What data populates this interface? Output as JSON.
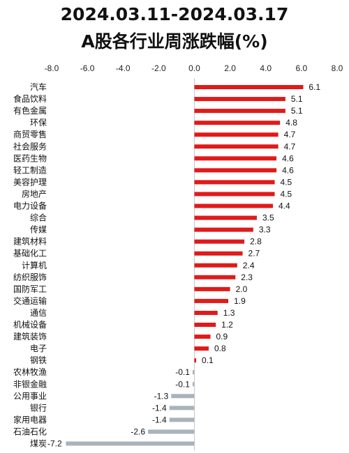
{
  "chart_data": {
    "type": "bar",
    "orientation": "horizontal",
    "title_line1": "2024.03.11-2024.03.17",
    "title_line2": "A股各行业周涨跌幅(%)",
    "xlim": [
      -8,
      8
    ],
    "x_ticks": [
      "-8.0",
      "-6.0",
      "-4.0",
      "-2.0",
      "0.0",
      "2.0",
      "4.0",
      "6.0",
      "8.0"
    ],
    "x_tick_values": [
      -8,
      -6,
      -4,
      -2,
      0,
      2,
      4,
      6,
      8
    ],
    "tick_position": "top",
    "grid": false,
    "positive_color": "#e01a1a",
    "negative_color": "#aab3bb",
    "categories": [
      "汽车",
      "食品饮料",
      "有色金属",
      "环保",
      "商贸零售",
      "社会服务",
      "医药生物",
      "轻工制造",
      "美容护理",
      "房地产",
      "电力设备",
      "综合",
      "传媒",
      "建筑材料",
      "基础化工",
      "计算机",
      "纺织服饰",
      "国防军工",
      "交通运输",
      "通信",
      "机械设备",
      "建筑装饰",
      "电子",
      "钢铁",
      "农林牧渔",
      "非银金融",
      "公用事业",
      "银行",
      "家用电器",
      "石油石化",
      "煤炭"
    ],
    "values": [
      6.1,
      5.1,
      5.1,
      4.8,
      4.7,
      4.7,
      4.6,
      4.6,
      4.5,
      4.5,
      4.4,
      3.5,
      3.3,
      2.8,
      2.7,
      2.4,
      2.3,
      2.0,
      1.9,
      1.3,
      1.2,
      0.9,
      0.8,
      0.1,
      -0.1,
      -0.1,
      -1.3,
      -1.4,
      -1.4,
      -2.6,
      -7.2
    ],
    "value_labels": [
      "6.1",
      "5.1",
      "5.1",
      "4.8",
      "4.7",
      "4.7",
      "4.6",
      "4.6",
      "4.5",
      "4.5",
      "4.4",
      "3.5",
      "3.3",
      "2.8",
      "2.7",
      "2.4",
      "2.3",
      "2.0",
      "1.9",
      "1.3",
      "1.2",
      "0.9",
      "0.8",
      "0.1",
      "-0.1",
      "-0.1",
      "-1.3",
      "-1.4",
      "-1.4",
      "-2.6",
      "-7.2"
    ]
  }
}
